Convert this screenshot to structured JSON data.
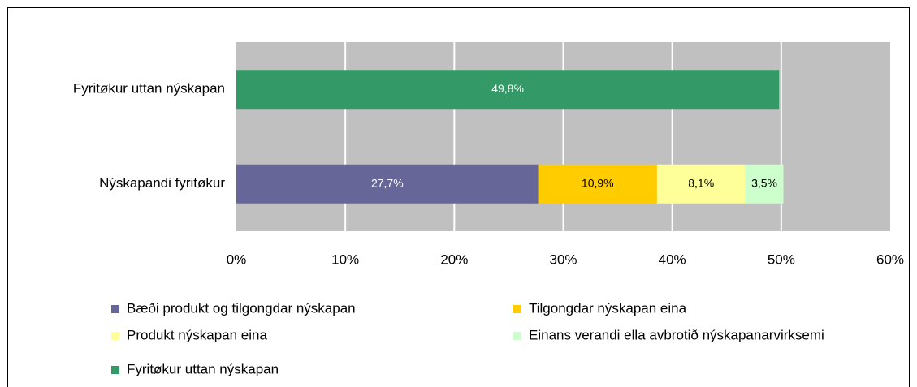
{
  "chart_data": {
    "type": "stacked-barh",
    "categories": [
      "Fyritøkur uttan  nýskapan",
      "Nýskapandi fyritøkur"
    ],
    "series": [
      {
        "name": "Bæði produkt og tilgongdar nýskapan",
        "color": "#666699",
        "label_color": "#ffffff",
        "values": [
          null,
          27.7
        ],
        "value_labels": [
          null,
          "27,7%"
        ]
      },
      {
        "name": "Tilgongdar nýskapan eina",
        "color": "#ffcc00",
        "label_color": "#000000",
        "values": [
          null,
          10.9
        ],
        "value_labels": [
          null,
          "10,9%"
        ]
      },
      {
        "name": "Produkt nýskapan eina",
        "color": "#ffff99",
        "label_color": "#000000",
        "values": [
          null,
          8.1
        ],
        "value_labels": [
          null,
          "8,1%"
        ]
      },
      {
        "name": "Einans verandi ella avbrotið nýskapanarvirksemi",
        "color": "#ccffcc",
        "label_color": "#000000",
        "values": [
          null,
          3.5
        ],
        "value_labels": [
          null,
          "3,5%"
        ]
      },
      {
        "name": "Fyritøkur uttan nýskapan",
        "color": "#339966",
        "label_color": "#ffffff",
        "values": [
          49.8,
          null
        ],
        "value_labels": [
          "49,8%",
          null
        ]
      }
    ],
    "xlim": [
      0,
      60
    ],
    "xticks": [
      {
        "value": 0,
        "label": "0%"
      },
      {
        "value": 10,
        "label": "10%"
      },
      {
        "value": 20,
        "label": "20%"
      },
      {
        "value": 30,
        "label": "30%"
      },
      {
        "value": 40,
        "label": "40%"
      },
      {
        "value": 50,
        "label": "50%"
      },
      {
        "value": 60,
        "label": "60%"
      }
    ],
    "grid": true,
    "legend": "bottom"
  }
}
